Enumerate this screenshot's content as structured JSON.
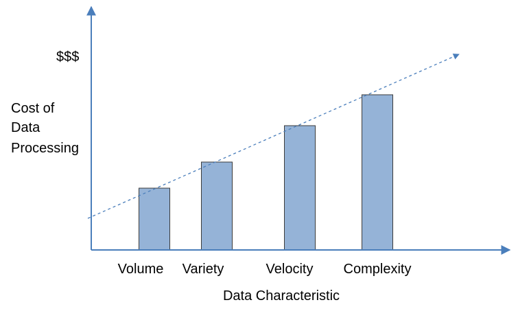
{
  "chart_data": {
    "type": "bar",
    "categories": [
      "Volume",
      "Variety",
      "Velocity",
      "Complexity"
    ],
    "values": [
      90,
      128,
      181,
      226
    ],
    "ylim": [
      0,
      355
    ],
    "xlabel": "Data Characteristic",
    "ylabel_lines": [
      "Cost of",
      "Data",
      "Processing"
    ],
    "y_marker_label": "$$$",
    "y_marker_value": 282,
    "trend_line": {
      "from": 46,
      "to": 285
    },
    "grid": false,
    "legend": "none",
    "colors": {
      "bar_fill": "#95b3d7",
      "bar_stroke": "#3b3b3b",
      "axis": "#4a7ebb",
      "trend": "#4a7ebb"
    }
  }
}
